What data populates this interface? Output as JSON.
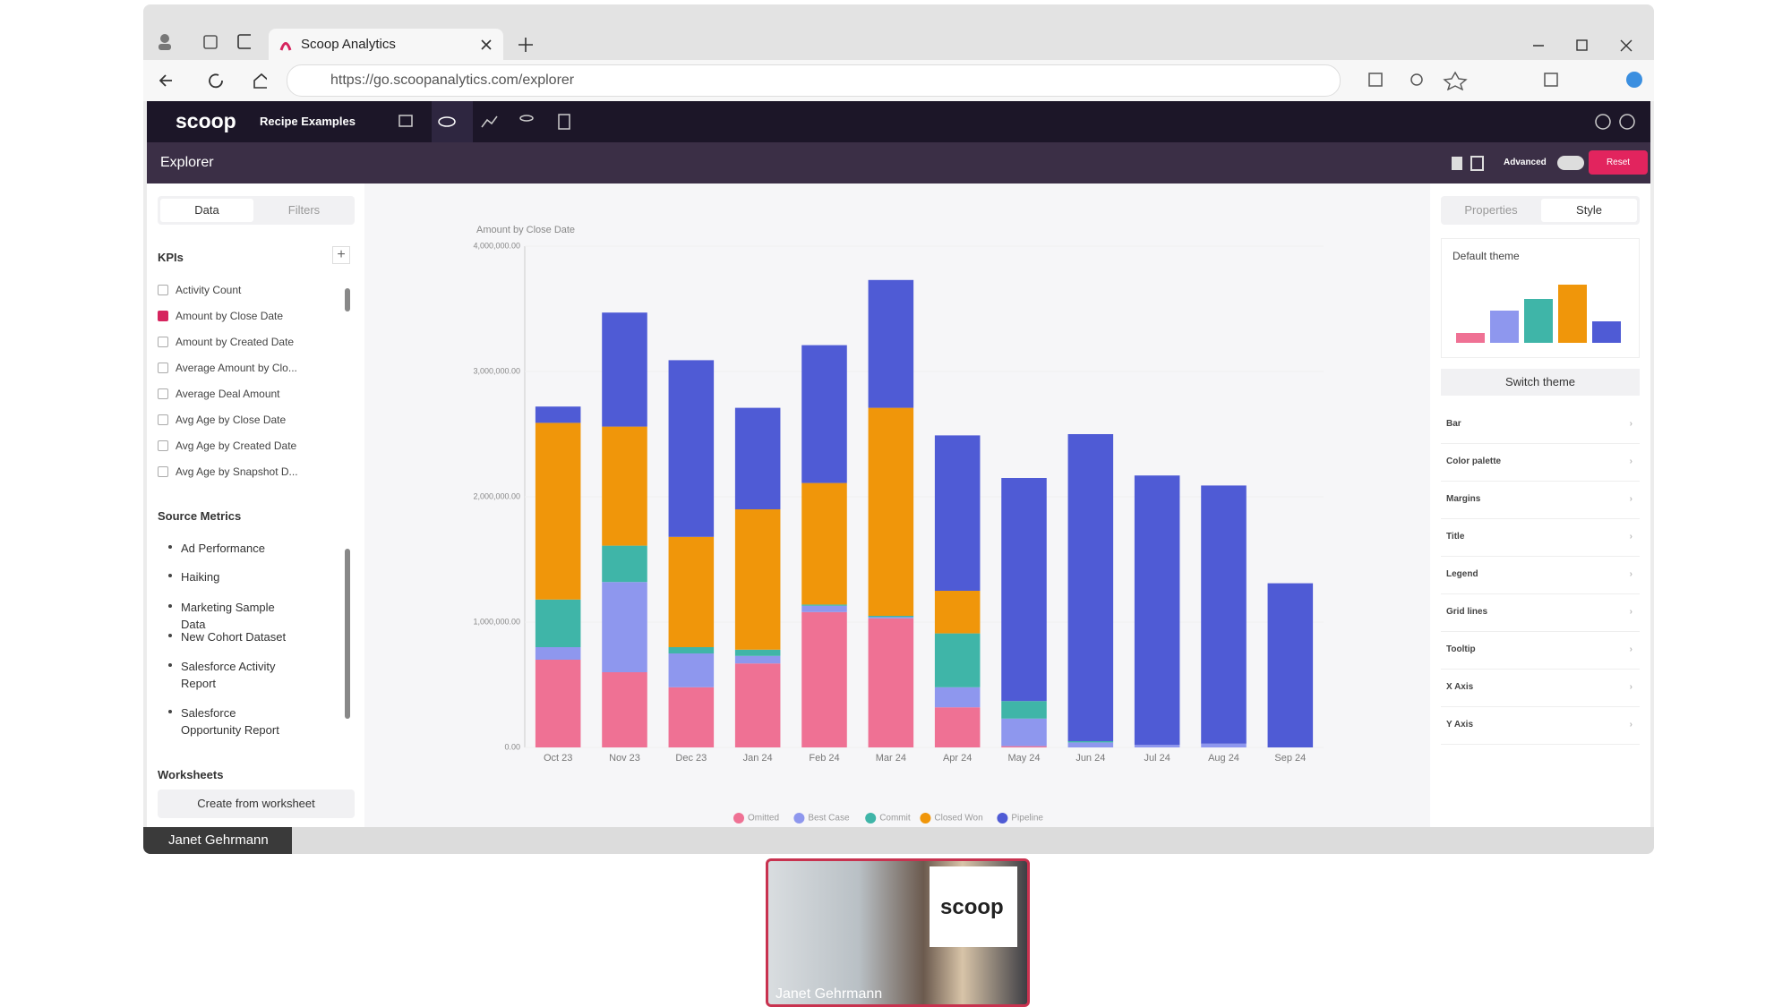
{
  "browser": {
    "tab_title": "Scoop Analytics",
    "url": "https://go.scoopanalytics.com/explorer"
  },
  "app": {
    "logo": "scoop",
    "project": "Recipe Examples",
    "page_title": "Explorer",
    "advanced": "Advanced",
    "reset": "Reset"
  },
  "sidebar": {
    "tabs": [
      "Data",
      "Filters"
    ],
    "kpis_title": "KPIs",
    "kpis": [
      {
        "label": "Activity Count",
        "checked": false
      },
      {
        "label": "Amount by Close Date",
        "checked": true
      },
      {
        "label": "Amount by Created Date",
        "checked": false
      },
      {
        "label": "Average Amount by Clo...",
        "checked": false
      },
      {
        "label": "Average Deal Amount",
        "checked": false
      },
      {
        "label": "Avg Age by Close Date",
        "checked": false
      },
      {
        "label": "Avg Age by Created Date",
        "checked": false
      },
      {
        "label": "Avg Age by Snapshot D...",
        "checked": false
      }
    ],
    "source_metrics_title": "Source Metrics",
    "source_metrics": [
      "Ad Performance",
      "Haiking",
      "Marketing Sample Data",
      "New Cohort Dataset",
      "Salesforce Activity Report",
      "Salesforce Opportunity Report"
    ],
    "worksheets_title": "Worksheets",
    "worksheet_button": "Create from worksheet"
  },
  "chart_data": {
    "type": "stacked_bar",
    "title": "Amount by Close Date",
    "categories": [
      "Oct 23",
      "Nov 23",
      "Dec 23",
      "Jan 24",
      "Feb 24",
      "Mar 24",
      "Apr 24",
      "May 24",
      "Jun 24",
      "Jul 24",
      "Aug 24",
      "Sep 24"
    ],
    "series": [
      {
        "name": "Omitted",
        "color": "#ef7194",
        "values": [
          700000,
          600000,
          480000,
          670000,
          1080000,
          1030000,
          320000,
          10000,
          0,
          0,
          0,
          0
        ]
      },
      {
        "name": "Best Case",
        "color": "#8e97ee",
        "values": [
          100000,
          720000,
          270000,
          60000,
          50000,
          10000,
          160000,
          220000,
          40000,
          20000,
          30000,
          0
        ]
      },
      {
        "name": "Commit",
        "color": "#3fb5a8",
        "values": [
          380000,
          290000,
          50000,
          50000,
          10000,
          10000,
          430000,
          140000,
          10000,
          0,
          0,
          0
        ]
      },
      {
        "name": "Closed Won",
        "color": "#f0960a",
        "values": [
          1410000,
          950000,
          880000,
          1120000,
          970000,
          1660000,
          340000,
          0,
          0,
          0,
          0,
          0
        ]
      },
      {
        "name": "Pipeline",
        "color": "#4f5bd5",
        "values": [
          130000,
          910000,
          1410000,
          810000,
          1100000,
          1020000,
          1240000,
          1780000,
          2450000,
          2150000,
          2060000,
          1310000
        ]
      }
    ],
    "ylim": [
      0,
      4000000
    ],
    "yticks": [
      {
        "value": 0,
        "label": "0.00"
      },
      {
        "value": 1000000,
        "label": "1,000,000.00"
      },
      {
        "value": 2000000,
        "label": "2,000,000.00"
      },
      {
        "value": 3000000,
        "label": "3,000,000.00"
      },
      {
        "value": 4000000,
        "label": "4,000,000.00"
      }
    ],
    "legend": "bottom"
  },
  "right_panel": {
    "tabs": [
      "Properties",
      "Style"
    ],
    "theme_name": "Default theme",
    "theme_button": "Switch theme",
    "sections": [
      "Bar",
      "Color palette",
      "Margins",
      "Title",
      "Legend",
      "Grid lines",
      "Tooltip",
      "X Axis",
      "Y Axis"
    ]
  },
  "presenter": {
    "label": "Janet Gehrmann",
    "video_caption": "Janet Gehrmann",
    "video_logo": "scoop"
  }
}
